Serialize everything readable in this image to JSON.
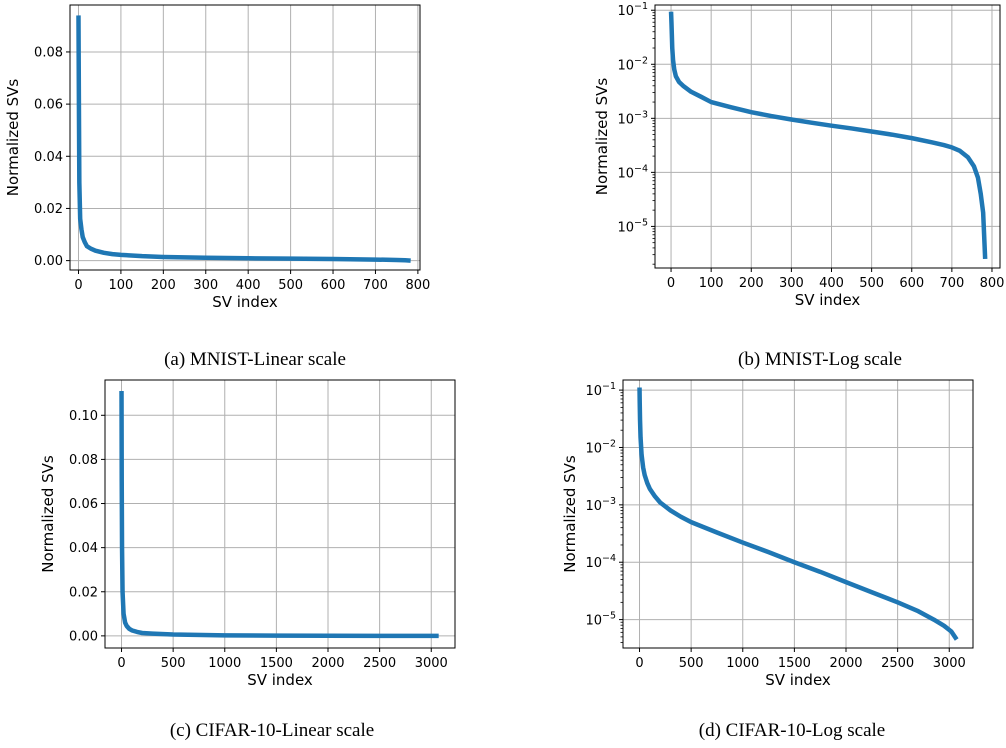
{
  "colors": {
    "line": "#1f77b4",
    "grid": "#b0b0b0",
    "axis": "#000000"
  },
  "chart_data": [
    {
      "type": "line",
      "caption": "(a) MNIST-Linear scale",
      "xlabel": "SV index",
      "ylabel": "Normalized SVs",
      "yscale": "linear",
      "grid": true,
      "xlim": [
        -20,
        805
      ],
      "ylim": [
        -0.0036,
        0.098
      ],
      "xticks": [
        0,
        100,
        200,
        300,
        400,
        500,
        600,
        700,
        800
      ],
      "yticks": [
        0.0,
        0.02,
        0.04,
        0.06,
        0.08
      ],
      "ytick_labels": [
        "0.00",
        "0.02",
        "0.04",
        "0.06",
        "0.08"
      ],
      "series": [
        {
          "x": [
            0,
            1,
            2,
            4,
            7,
            10,
            15,
            20,
            30,
            40,
            60,
            80,
            100,
            150,
            200,
            300,
            400,
            500,
            600,
            700,
            750,
            770,
            783
          ],
          "values": [
            0.094,
            0.06,
            0.03,
            0.016,
            0.012,
            0.009,
            0.007,
            0.0055,
            0.0045,
            0.0038,
            0.003,
            0.0025,
            0.0022,
            0.0017,
            0.0014,
            0.0011,
            0.0009,
            0.00075,
            0.0006,
            0.0004,
            0.00025,
            0.00015,
            2.5e-06
          ]
        }
      ]
    },
    {
      "type": "line",
      "caption": "(b) MNIST-Log scale",
      "xlabel": "SV index",
      "ylabel": "Normalized SVs",
      "yscale": "log",
      "grid": true,
      "xlim": [
        -40,
        820
      ],
      "ylim": [
        1.7e-06,
        0.125
      ],
      "xticks": [
        0,
        100,
        200,
        300,
        400,
        500,
        600,
        700,
        800
      ],
      "yticks": [
        0.1,
        0.01,
        0.001,
        0.0001,
        1e-05
      ],
      "ytick_labels": [
        {
          "base": "10",
          "exp": "−1"
        },
        {
          "base": "10",
          "exp": "−2"
        },
        {
          "base": "10",
          "exp": "−3"
        },
        {
          "base": "10",
          "exp": "−4"
        },
        {
          "base": "10",
          "exp": "−5"
        }
      ],
      "series": [
        {
          "x": [
            0,
            1,
            2,
            3,
            5,
            8,
            12,
            20,
            30,
            50,
            75,
            100,
            150,
            200,
            250,
            300,
            350,
            400,
            450,
            500,
            550,
            600,
            650,
            680,
            700,
            720,
            740,
            755,
            765,
            772,
            778,
            783
          ],
          "values": [
            0.094,
            0.06,
            0.035,
            0.02,
            0.012,
            0.008,
            0.006,
            0.0047,
            0.004,
            0.0031,
            0.0025,
            0.002,
            0.0016,
            0.0013,
            0.0011,
            0.00095,
            0.00083,
            0.00073,
            0.00065,
            0.00057,
            0.0005,
            0.00043,
            0.00036,
            0.00032,
            0.00029,
            0.00025,
            0.00019,
            0.00013,
            8e-05,
            4e-05,
            1.8e-05,
            2.5e-06
          ]
        }
      ]
    },
    {
      "type": "line",
      "caption": "(c) CIFAR-10-Linear scale",
      "xlabel": "SV index",
      "ylabel": "Normalized SVs",
      "yscale": "linear",
      "grid": true,
      "xlim": [
        -160,
        3230
      ],
      "ylim": [
        -0.0055,
        0.116
      ],
      "xticks": [
        0,
        500,
        1000,
        1500,
        2000,
        2500,
        3000
      ],
      "yticks": [
        0.0,
        0.02,
        0.04,
        0.06,
        0.08,
        0.1
      ],
      "ytick_labels": [
        "0.00",
        "0.02",
        "0.04",
        "0.06",
        "0.08",
        "0.10"
      ],
      "series": [
        {
          "x": [
            0,
            2,
            5,
            10,
            20,
            35,
            50,
            75,
            100,
            150,
            200,
            300,
            500,
            1000,
            1500,
            2000,
            2500,
            3000,
            3072
          ],
          "values": [
            0.111,
            0.07,
            0.04,
            0.02,
            0.01,
            0.006,
            0.0045,
            0.0032,
            0.0025,
            0.0018,
            0.0013,
            0.001,
            0.0006,
            0.0002,
            0.0001,
            5e-05,
            2e-05,
            7e-06,
            4.5e-06
          ]
        }
      ]
    },
    {
      "type": "line",
      "caption": "(d) CIFAR-10-Log scale",
      "xlabel": "SV index",
      "ylabel": "Normalized SVs",
      "yscale": "log",
      "grid": true,
      "xlim": [
        -160,
        3230
      ],
      "ylim": [
        3.2e-06,
        0.15
      ],
      "xticks": [
        0,
        500,
        1000,
        1500,
        2000,
        2500,
        3000
      ],
      "yticks": [
        0.1,
        0.01,
        0.001,
        0.0001,
        1e-05
      ],
      "ytick_labels": [
        {
          "base": "10",
          "exp": "−1"
        },
        {
          "base": "10",
          "exp": "−2"
        },
        {
          "base": "10",
          "exp": "−3"
        },
        {
          "base": "10",
          "exp": "−4"
        },
        {
          "base": "10",
          "exp": "−5"
        }
      ],
      "series": [
        {
          "x": [
            0,
            2,
            5,
            10,
            20,
            35,
            50,
            75,
            100,
            150,
            200,
            300,
            400,
            500,
            750,
            1000,
            1250,
            1500,
            1750,
            2000,
            2250,
            2500,
            2700,
            2850,
            2950,
            3020,
            3072
          ],
          "values": [
            0.111,
            0.06,
            0.03,
            0.015,
            0.0075,
            0.0045,
            0.0033,
            0.0024,
            0.0019,
            0.0014,
            0.0011,
            0.0008,
            0.00062,
            0.0005,
            0.00033,
            0.00022,
            0.00015,
            0.0001,
            6.8e-05,
            4.5e-05,
            3e-05,
            2e-05,
            1.4e-05,
            1e-05,
            7.8e-06,
            6.2e-06,
            4.5e-06
          ]
        }
      ]
    }
  ]
}
